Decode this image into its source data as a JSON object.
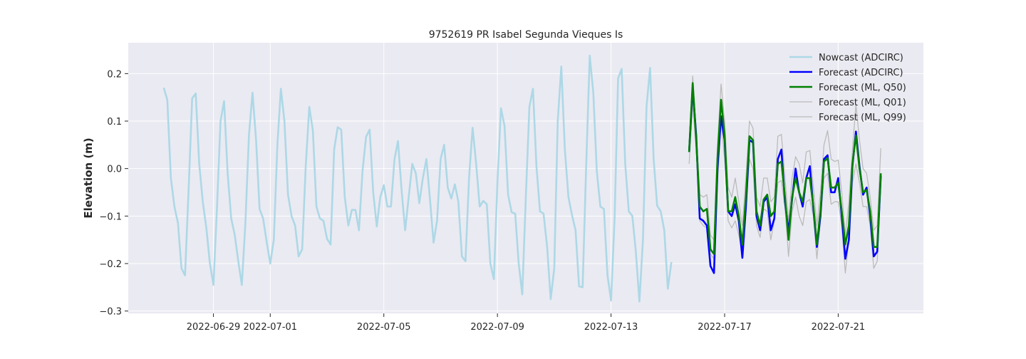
{
  "chart_data": {
    "type": "line",
    "title": "9752619 PR Isabel Segunda Vieques Is",
    "ylabel": "Elevation (m)",
    "xlabel": "",
    "xlim": [
      "2022-06-26",
      "2022-07-24"
    ],
    "ylim": [
      -0.305,
      0.265
    ],
    "yticks": [
      -0.3,
      -0.2,
      -0.1,
      0.0,
      0.1,
      0.2
    ],
    "ytick_labels": [
      "−0.3",
      "−0.2",
      "−0.1",
      "0.0",
      "0.1",
      "0.2"
    ],
    "xticks": [
      "2022-06-29",
      "2022-07-01",
      "2022-07-05",
      "2022-07-09",
      "2022-07-13",
      "2022-07-17",
      "2022-07-21"
    ],
    "grid": true,
    "legend_position": "top-right",
    "colors": {
      "background": "#eaeaf2",
      "grid": "#ffffff",
      "nowcast": "#add8e6",
      "forecast_adcirc": "#0000ff",
      "forecast_ml_q50": "#008000",
      "forecast_ml_q01": "#bbbbbb",
      "forecast_ml_q99": "#bbbbbb"
    },
    "series": [
      {
        "name": "Nowcast (ADCIRC)",
        "key": "nowcast",
        "start": "2022-06-27T06:00",
        "step_hours": 3,
        "values": [
          0.17,
          0.145,
          -0.02,
          -0.08,
          -0.115,
          -0.21,
          -0.225,
          -0.045,
          0.148,
          0.158,
          0.01,
          -0.07,
          -0.125,
          -0.2,
          -0.245,
          -0.08,
          0.1,
          0.142,
          -0.01,
          -0.105,
          -0.14,
          -0.195,
          -0.245,
          -0.115,
          0.07,
          0.16,
          0.06,
          -0.085,
          -0.105,
          -0.155,
          -0.2,
          -0.15,
          0.05,
          0.168,
          0.1,
          -0.055,
          -0.1,
          -0.12,
          -0.185,
          -0.17,
          0.005,
          0.13,
          0.08,
          -0.08,
          -0.105,
          -0.11,
          -0.148,
          -0.16,
          0.04,
          0.087,
          0.082,
          -0.06,
          -0.12,
          -0.087,
          -0.087,
          -0.13,
          -0.005,
          0.067,
          0.082,
          -0.05,
          -0.122,
          -0.06,
          -0.035,
          -0.08,
          -0.08,
          0.02,
          0.058,
          -0.045,
          -0.13,
          -0.06,
          0.01,
          -0.01,
          -0.073,
          -0.02,
          0.02,
          -0.065,
          -0.156,
          -0.11,
          0.02,
          0.05,
          -0.04,
          -0.063,
          -0.033,
          -0.07,
          -0.185,
          -0.195,
          -0.02,
          0.086,
          0.01,
          -0.08,
          -0.068,
          -0.075,
          -0.2,
          -0.233,
          -0.03,
          0.127,
          0.09,
          -0.055,
          -0.092,
          -0.095,
          -0.2,
          -0.265,
          -0.06,
          0.13,
          0.168,
          0.005,
          -0.09,
          -0.095,
          -0.165,
          -0.275,
          -0.21,
          0.1,
          0.215,
          0.04,
          -0.06,
          -0.098,
          -0.13,
          -0.248,
          -0.25,
          0.005,
          0.238,
          0.16,
          -0.005,
          -0.08,
          -0.085,
          -0.225,
          -0.278,
          -0.105,
          0.19,
          0.21,
          0.01,
          -0.09,
          -0.1,
          -0.175,
          -0.28,
          -0.15,
          0.13,
          0.212,
          0.02,
          -0.078,
          -0.09,
          -0.13,
          -0.253,
          -0.197
        ]
      },
      {
        "name": "Forecast (ADCIRC)",
        "key": "forecast_adcirc",
        "start": "2022-07-15T18:00",
        "step_hours": 3,
        "values": [
          0.035,
          0.17,
          0.07,
          -0.105,
          -0.11,
          -0.12,
          -0.205,
          -0.22,
          0.0,
          0.11,
          0.06,
          -0.09,
          -0.1,
          -0.075,
          -0.11,
          -0.188,
          -0.08,
          0.06,
          0.055,
          -0.1,
          -0.13,
          -0.07,
          -0.06,
          -0.13,
          -0.105,
          0.02,
          0.04,
          -0.07,
          -0.132,
          -0.065,
          0.0,
          -0.05,
          -0.08,
          -0.02,
          0.005,
          -0.085,
          -0.165,
          -0.1,
          0.02,
          0.028,
          -0.05,
          -0.05,
          -0.02,
          -0.1,
          -0.19,
          -0.15,
          0.005,
          0.078,
          0.005,
          -0.055,
          -0.04,
          -0.1,
          -0.185,
          -0.175,
          -0.015
        ]
      },
      {
        "name": "Forecast (ML, Q50)",
        "key": "forecast_ml_q50",
        "start": "2022-07-15T18:00",
        "step_hours": 3,
        "values": [
          0.035,
          0.18,
          0.06,
          -0.08,
          -0.09,
          -0.085,
          -0.17,
          -0.18,
          0.02,
          0.145,
          0.07,
          -0.09,
          -0.09,
          -0.06,
          -0.1,
          -0.16,
          -0.06,
          0.068,
          0.06,
          -0.09,
          -0.12,
          -0.065,
          -0.055,
          -0.1,
          -0.09,
          0.01,
          0.015,
          -0.06,
          -0.15,
          -0.06,
          -0.02,
          -0.05,
          -0.07,
          -0.02,
          -0.02,
          -0.08,
          -0.16,
          -0.09,
          0.015,
          0.022,
          -0.04,
          -0.04,
          -0.03,
          -0.09,
          -0.16,
          -0.12,
          0.01,
          0.07,
          0.0,
          -0.05,
          -0.045,
          -0.09,
          -0.165,
          -0.165,
          -0.01
        ]
      },
      {
        "name": "Forecast (ML, Q01)",
        "key": "forecast_ml_q01",
        "start": "2022-07-15T18:00",
        "step_hours": 3,
        "values": [
          0.01,
          0.14,
          0.04,
          -0.11,
          -0.12,
          -0.125,
          -0.18,
          -0.19,
          -0.03,
          0.1,
          0.02,
          -0.11,
          -0.125,
          -0.11,
          -0.14,
          -0.18,
          -0.08,
          0.02,
          0.0,
          -0.12,
          -0.145,
          -0.085,
          -0.09,
          -0.15,
          -0.11,
          -0.03,
          -0.025,
          -0.08,
          -0.185,
          -0.09,
          -0.06,
          -0.1,
          -0.12,
          -0.07,
          -0.065,
          -0.1,
          -0.19,
          -0.11,
          -0.02,
          -0.01,
          -0.075,
          -0.07,
          -0.07,
          -0.12,
          -0.22,
          -0.15,
          -0.03,
          0.01,
          -0.03,
          -0.08,
          -0.08,
          -0.12,
          -0.21,
          -0.195,
          -0.03
        ]
      },
      {
        "name": "Forecast (ML, Q99)",
        "key": "forecast_ml_q99",
        "start": "2022-07-15T18:00",
        "step_hours": 3,
        "values": [
          0.04,
          0.195,
          0.08,
          -0.055,
          -0.06,
          -0.055,
          -0.14,
          -0.15,
          0.05,
          0.178,
          0.1,
          -0.04,
          -0.06,
          -0.02,
          -0.07,
          -0.12,
          -0.02,
          0.1,
          0.085,
          -0.06,
          -0.08,
          -0.02,
          -0.02,
          -0.07,
          -0.06,
          0.068,
          0.072,
          -0.02,
          -0.11,
          -0.02,
          0.025,
          0.01,
          -0.03,
          0.035,
          0.038,
          -0.04,
          -0.12,
          -0.05,
          0.05,
          0.08,
          0.02,
          0.015,
          0.018,
          -0.05,
          -0.14,
          -0.07,
          0.04,
          0.135,
          0.06,
          0.0,
          -0.01,
          -0.06,
          -0.13,
          -0.12,
          0.043
        ]
      }
    ]
  }
}
